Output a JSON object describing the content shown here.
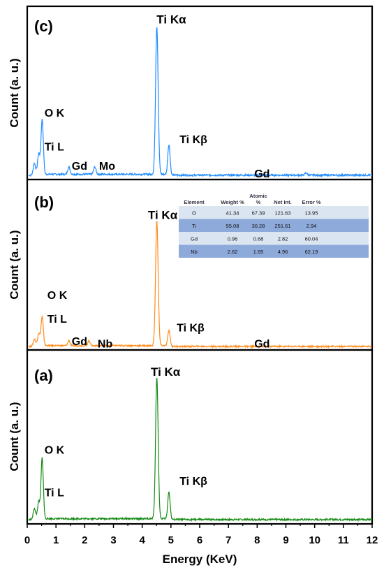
{
  "colors": {
    "a": "#168a16",
    "b": "#ff8c1a",
    "c": "#1f8cff",
    "row_light": "#dbe5f1",
    "row_dark": "#8eaadb"
  },
  "xlabel": "Energy (KeV)",
  "xticks": [
    "0",
    "1",
    "2",
    "3",
    "4",
    "5",
    "6",
    "7",
    "8",
    "9",
    "10",
    "11",
    "12"
  ],
  "chart_data": [
    {
      "panel": "(c)",
      "type": "line",
      "ylabel": "Count (a. u.)",
      "xlabel": "Energy (KeV)",
      "xlim": [
        0,
        12
      ],
      "ylim": [
        0,
        100
      ],
      "color": "#1f8cff",
      "peaks": [
        {
          "x": 0.25,
          "y": 8
        },
        {
          "x": 0.4,
          "y": 14
        },
        {
          "x": 0.52,
          "y": 37
        },
        {
          "x": 1.45,
          "y": 5
        },
        {
          "x": 2.35,
          "y": 5
        },
        {
          "x": 4.51,
          "y": 100
        },
        {
          "x": 4.93,
          "y": 20
        },
        {
          "x": 9.7,
          "y": 1.5
        }
      ],
      "annotations": [
        {
          "text": "Ti Kα",
          "x": 4.5,
          "y": 106
        },
        {
          "text": "O K",
          "x": 0.6,
          "y": 43
        },
        {
          "text": "Ti L",
          "x": 0.6,
          "y": 20
        },
        {
          "text": "Gd",
          "x": 1.55,
          "y": 7
        },
        {
          "text": "Mo",
          "x": 2.5,
          "y": 7
        },
        {
          "text": "Ti Kβ",
          "x": 5.3,
          "y": 25
        },
        {
          "text": "Gd",
          "x": 7.9,
          "y": 2
        }
      ]
    },
    {
      "panel": "(b)",
      "type": "line",
      "ylabel": "Count (a. u.)",
      "xlabel": "Energy (KeV)",
      "xlim": [
        0,
        12
      ],
      "ylim": [
        0,
        100
      ],
      "color": "#ff8c1a",
      "peaks": [
        {
          "x": 0.25,
          "y": 6
        },
        {
          "x": 0.4,
          "y": 10
        },
        {
          "x": 0.52,
          "y": 23
        },
        {
          "x": 1.45,
          "y": 4
        },
        {
          "x": 2.15,
          "y": 4
        },
        {
          "x": 4.51,
          "y": 100
        },
        {
          "x": 4.93,
          "y": 12
        }
      ],
      "annotations": [
        {
          "text": "Ti Kα",
          "x": 4.2,
          "y": 106
        },
        {
          "text": "O K",
          "x": 0.7,
          "y": 42
        },
        {
          "text": "Ti L",
          "x": 0.7,
          "y": 23
        },
        {
          "text": "Gd",
          "x": 1.55,
          "y": 5
        },
        {
          "text": "Nb",
          "x": 2.45,
          "y": 3
        },
        {
          "text": "Ti Kβ",
          "x": 5.2,
          "y": 16
        },
        {
          "text": "Gd",
          "x": 7.9,
          "y": 3
        }
      ],
      "table": {
        "headers": [
          "Element",
          "Weight %",
          "Atomic %",
          "Net Int.",
          "Error %"
        ],
        "rows": [
          [
            "O",
            "41.34",
            "67.39",
            "121.63",
            "13.95"
          ],
          [
            "Ti",
            "55.08",
            "30.28",
            "251.61",
            "2.94"
          ],
          [
            "Gd",
            "0.96",
            "0.68",
            "2.82",
            "60.04"
          ],
          [
            "Nb",
            "2.62",
            "1.65",
            "4.96",
            "62.19"
          ]
        ]
      }
    },
    {
      "panel": "(a)",
      "type": "line",
      "ylabel": "Count (a. u.)",
      "xlabel": "Energy (KeV)",
      "xlim": [
        0,
        12
      ],
      "ylim": [
        0,
        100
      ],
      "color": "#168a16",
      "peaks": [
        {
          "x": 0.25,
          "y": 8
        },
        {
          "x": 0.4,
          "y": 12
        },
        {
          "x": 0.52,
          "y": 43
        },
        {
          "x": 4.51,
          "y": 100
        },
        {
          "x": 4.93,
          "y": 19
        }
      ],
      "annotations": [
        {
          "text": "Ti Kα",
          "x": 4.3,
          "y": 105
        },
        {
          "text": "O K",
          "x": 0.6,
          "y": 50
        },
        {
          "text": "Ti L",
          "x": 0.6,
          "y": 20
        },
        {
          "text": "Ti Kβ",
          "x": 5.3,
          "y": 28
        }
      ]
    }
  ]
}
